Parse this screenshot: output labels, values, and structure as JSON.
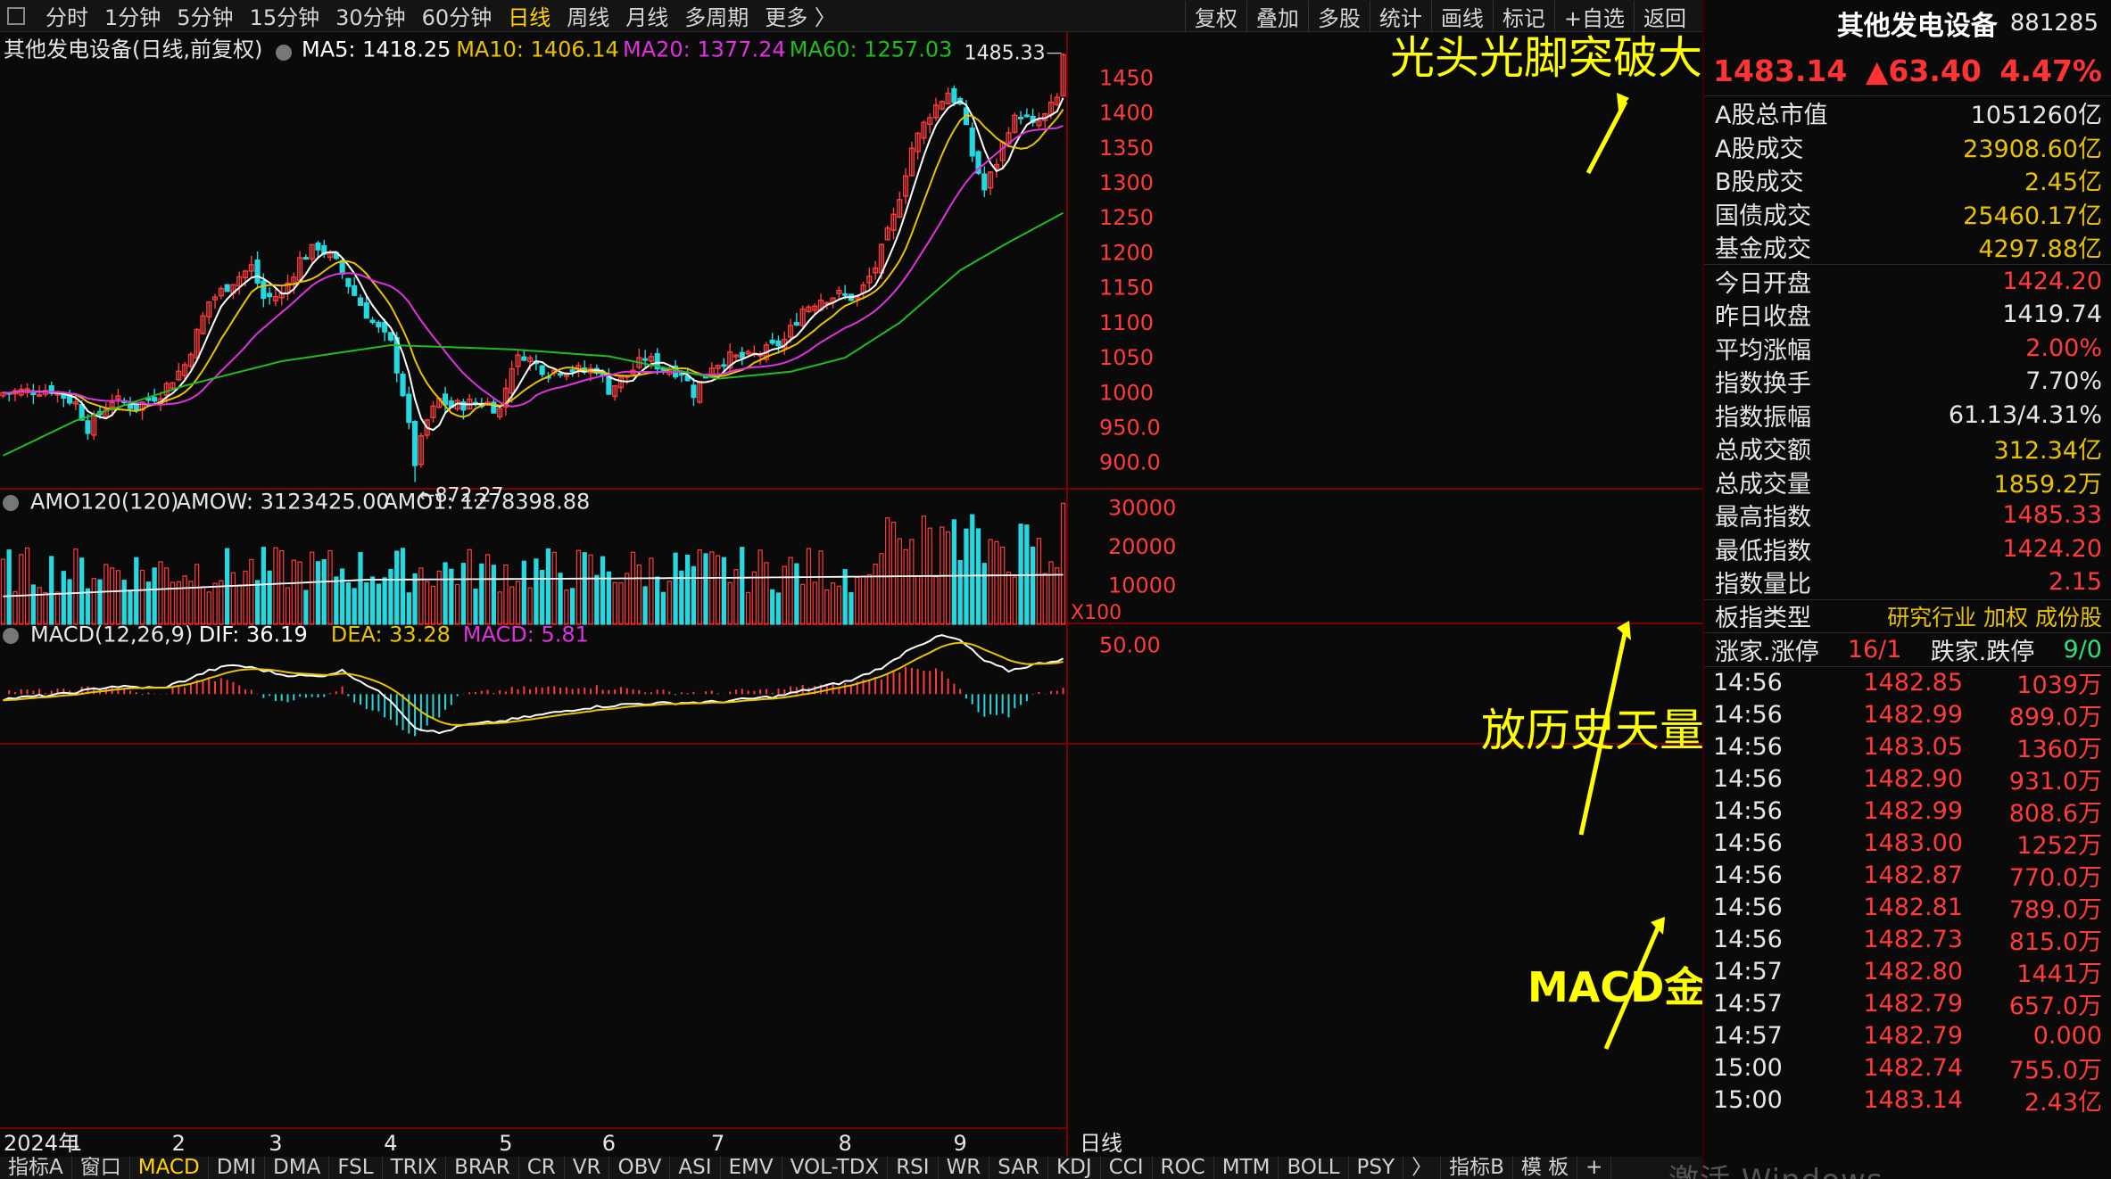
{
  "toolbar": {
    "periods": [
      "分时",
      "1分钟",
      "5分钟",
      "15分钟",
      "30分钟",
      "60分钟",
      "日线",
      "周线",
      "月线",
      "多周期",
      "更多 〉"
    ],
    "active_period": "日线",
    "tools": [
      "复权",
      "叠加",
      "多股",
      "统计",
      "画线",
      "标记",
      "+自选",
      "返回"
    ]
  },
  "indicator_bar": [
    "指标A",
    "窗口",
    "MACD",
    "DMI",
    "DMA",
    "FSL",
    "TRIX",
    "BRAR",
    "CR",
    "VR",
    "OBV",
    "ASI",
    "EMV",
    "VOL-TDX",
    "RSI",
    "WR",
    "SAR",
    "KDJ",
    "CCI",
    "ROC",
    "MTM",
    "BOLL",
    "PSY",
    "〉",
    "指标B",
    "模 板",
    "+"
  ],
  "active_indicator": "MACD",
  "watermark": "激活 Windows",
  "colors": {
    "up": "#ff3b3b",
    "down": "#25d8e0",
    "ma5": "#ffffff",
    "ma10": "#e8c200",
    "ma20": "#dd33dd",
    "ma60": "#22bb22",
    "annotation": "#ffff00",
    "bg": "#0a0a0a"
  },
  "chart_data": {
    "type": "candlestick",
    "title": "其他发电设备(日线,前复权)",
    "legend_main": [
      {
        "label": "MA5: 1418.25",
        "color": "#ffffff"
      },
      {
        "label": "MA10: 1406.14",
        "color": "#e8c200"
      },
      {
        "label": "MA20: 1377.24",
        "color": "#dd33dd"
      },
      {
        "label": "MA60: 1257.03",
        "color": "#22bb22"
      }
    ],
    "y_ticks": [
      "1450",
      "1400",
      "1350",
      "1300",
      "1250",
      "1200",
      "1150",
      "1100",
      "1050",
      "1000",
      "950.0",
      "900.0"
    ],
    "ylim": [
      878,
      1490
    ],
    "x_labels": [
      {
        "label": "2024年",
        "idx": 0
      },
      {
        "label": "1",
        "idx": 12
      },
      {
        "label": "2",
        "idx": 29
      },
      {
        "label": "3",
        "idx": 45
      },
      {
        "label": "4",
        "idx": 64
      },
      {
        "label": "5",
        "idx": 83
      },
      {
        "label": "6",
        "idx": 100
      },
      {
        "label": "7",
        "idx": 118
      },
      {
        "label": "8",
        "idx": 139
      },
      {
        "label": "9",
        "idx": 158
      }
    ],
    "x_end_label": "日线",
    "high_marker": "1485.33",
    "low_marker": "←872.27",
    "anchors": [
      [
        0,
        1000
      ],
      [
        8,
        1005
      ],
      [
        12,
        985
      ],
      [
        14,
        950
      ],
      [
        18,
        990
      ],
      [
        22,
        980
      ],
      [
        26,
        1000
      ],
      [
        30,
        1040
      ],
      [
        34,
        1130
      ],
      [
        38,
        1160
      ],
      [
        41,
        1180
      ],
      [
        43,
        1135
      ],
      [
        46,
        1140
      ],
      [
        49,
        1190
      ],
      [
        52,
        1210
      ],
      [
        55,
        1185
      ],
      [
        58,
        1140
      ],
      [
        61,
        1100
      ],
      [
        64,
        1070
      ],
      [
        66,
        1000
      ],
      [
        68,
        900
      ],
      [
        70,
        960
      ],
      [
        72,
        990
      ],
      [
        74,
        980
      ],
      [
        77,
        985
      ],
      [
        80,
        985
      ],
      [
        82,
        975
      ],
      [
        84,
        1040
      ],
      [
        86,
        1055
      ],
      [
        88,
        1040
      ],
      [
        90,
        1030
      ],
      [
        93,
        1035
      ],
      [
        96,
        1030
      ],
      [
        98,
        1035
      ],
      [
        100,
        1005
      ],
      [
        103,
        1025
      ],
      [
        106,
        1050
      ],
      [
        109,
        1035
      ],
      [
        112,
        1030
      ],
      [
        114,
        1000
      ],
      [
        117,
        1040
      ],
      [
        120,
        1050
      ],
      [
        123,
        1050
      ],
      [
        126,
        1060
      ],
      [
        129,
        1075
      ],
      [
        132,
        1120
      ],
      [
        135,
        1135
      ],
      [
        138,
        1140
      ],
      [
        141,
        1135
      ],
      [
        144,
        1180
      ],
      [
        147,
        1250
      ],
      [
        150,
        1350
      ],
      [
        153,
        1400
      ],
      [
        156,
        1430
      ],
      [
        158,
        1410
      ],
      [
        160,
        1340
      ],
      [
        162,
        1290
      ],
      [
        164,
        1330
      ],
      [
        166,
        1380
      ],
      [
        168,
        1400
      ],
      [
        170,
        1380
      ],
      [
        172,
        1395
      ],
      [
        174,
        1420
      ],
      [
        175,
        1483
      ]
    ],
    "ma60_anchors": [
      [
        0,
        910
      ],
      [
        12,
        960
      ],
      [
        30,
        1010
      ],
      [
        46,
        1045
      ],
      [
        64,
        1068
      ],
      [
        84,
        1062
      ],
      [
        100,
        1052
      ],
      [
        118,
        1020
      ],
      [
        130,
        1030
      ],
      [
        139,
        1050
      ],
      [
        148,
        1100
      ],
      [
        158,
        1175
      ],
      [
        166,
        1215
      ],
      [
        175,
        1257
      ]
    ],
    "amo_legend": [
      {
        "label": "AMO120(120)",
        "color": "#e6e6e6"
      },
      {
        "label": "AMOW: 3123425.00",
        "color": "#e6e6e6"
      },
      {
        "label": "AMO1: 1278398.88",
        "color": "#e6e6e6"
      }
    ],
    "amo_ticks": [
      "30000",
      "20000",
      "10000"
    ],
    "amo_unit": "X100",
    "amo_ylim": [
      0,
      32000
    ],
    "amo_amow_last": 31234.25,
    "amo_amo1_last": 12783.99,
    "macd_legend": [
      {
        "label": "MACD(12,26,9)",
        "color": "#e6e6e6"
      },
      {
        "label": "DIF: 36.19",
        "color": "#ffffff"
      },
      {
        "label": "DEA: 33.28",
        "color": "#e8c200"
      },
      {
        "label": "MACD: 5.81",
        "color": "#dd33dd"
      }
    ],
    "macd_ticks": [
      "50.00"
    ],
    "macd_ylim": [
      -50,
      68
    ]
  },
  "annotations": [
    {
      "text": "光头光脚突破大涨",
      "kind": "text"
    },
    {
      "text": "放历史天量",
      "kind": "text"
    },
    {
      "text": "MACD金叉",
      "kind": "text"
    }
  ],
  "side": {
    "name": "其他发电设备",
    "code": "881285",
    "price": "1483.14",
    "change": "▲63.40",
    "pct": "4.47%",
    "market": [
      {
        "k": "A股总市值",
        "v": "1051260亿",
        "c": "#e6e6e6"
      },
      {
        "k": "A股成交",
        "v": "23908.60亿",
        "c": "#e8c200"
      },
      {
        "k": "B股成交",
        "v": "2.45亿",
        "c": "#e8c200"
      },
      {
        "k": "国债成交",
        "v": "25460.17亿",
        "c": "#e8c200"
      },
      {
        "k": "基金成交",
        "v": "4297.88亿",
        "c": "#e8c200"
      }
    ],
    "stats": [
      {
        "k": "今日开盘",
        "v": "1424.20",
        "c": "#ff3b3b"
      },
      {
        "k": "昨日收盘",
        "v": "1419.74",
        "c": "#e6e6e6"
      },
      {
        "k": "平均涨幅",
        "v": "2.00%",
        "c": "#ff3b3b"
      },
      {
        "k": "指数换手",
        "v": "7.70%",
        "c": "#e6e6e6"
      },
      {
        "k": "指数振幅",
        "v": "61.13/4.31%",
        "c": "#e6e6e6"
      },
      {
        "k": "总成交额",
        "v": "312.34亿",
        "c": "#e8c200"
      },
      {
        "k": "总成交量",
        "v": "1859.2万",
        "c": "#e8c200"
      },
      {
        "k": "最高指数",
        "v": "1485.33",
        "c": "#ff3b3b"
      },
      {
        "k": "最低指数",
        "v": "1424.20",
        "c": "#ff3b3b"
      },
      {
        "k": "指数量比",
        "v": "2.15",
        "c": "#ff3b3b"
      }
    ],
    "type_row": {
      "k": "板指类型",
      "v": "研究行业 加权 成份股"
    },
    "limit_row": {
      "k": "涨家.涨停",
      "v1": "16/1",
      "k2": "跌家.跌停",
      "v2": "9/0"
    },
    "ticks": [
      {
        "t": "14:56",
        "p": "1482.85",
        "v": "1039万"
      },
      {
        "t": "14:56",
        "p": "1482.99",
        "v": "899.0万"
      },
      {
        "t": "14:56",
        "p": "1483.05",
        "v": "1360万"
      },
      {
        "t": "14:56",
        "p": "1482.90",
        "v": "931.0万"
      },
      {
        "t": "14:56",
        "p": "1482.99",
        "v": "808.6万"
      },
      {
        "t": "14:56",
        "p": "1483.00",
        "v": "1252万"
      },
      {
        "t": "14:56",
        "p": "1482.87",
        "v": "770.0万"
      },
      {
        "t": "14:56",
        "p": "1482.81",
        "v": "789.0万"
      },
      {
        "t": "14:56",
        "p": "1482.73",
        "v": "815.0万"
      },
      {
        "t": "14:57",
        "p": "1482.80",
        "v": "1441万"
      },
      {
        "t": "14:57",
        "p": "1482.79",
        "v": "657.0万"
      },
      {
        "t": "14:57",
        "p": "1482.79",
        "v": "0.000"
      },
      {
        "t": "15:00",
        "p": "1482.74",
        "v": "755.0万"
      },
      {
        "t": "15:00",
        "p": "1483.14",
        "v": "2.43亿"
      }
    ]
  }
}
